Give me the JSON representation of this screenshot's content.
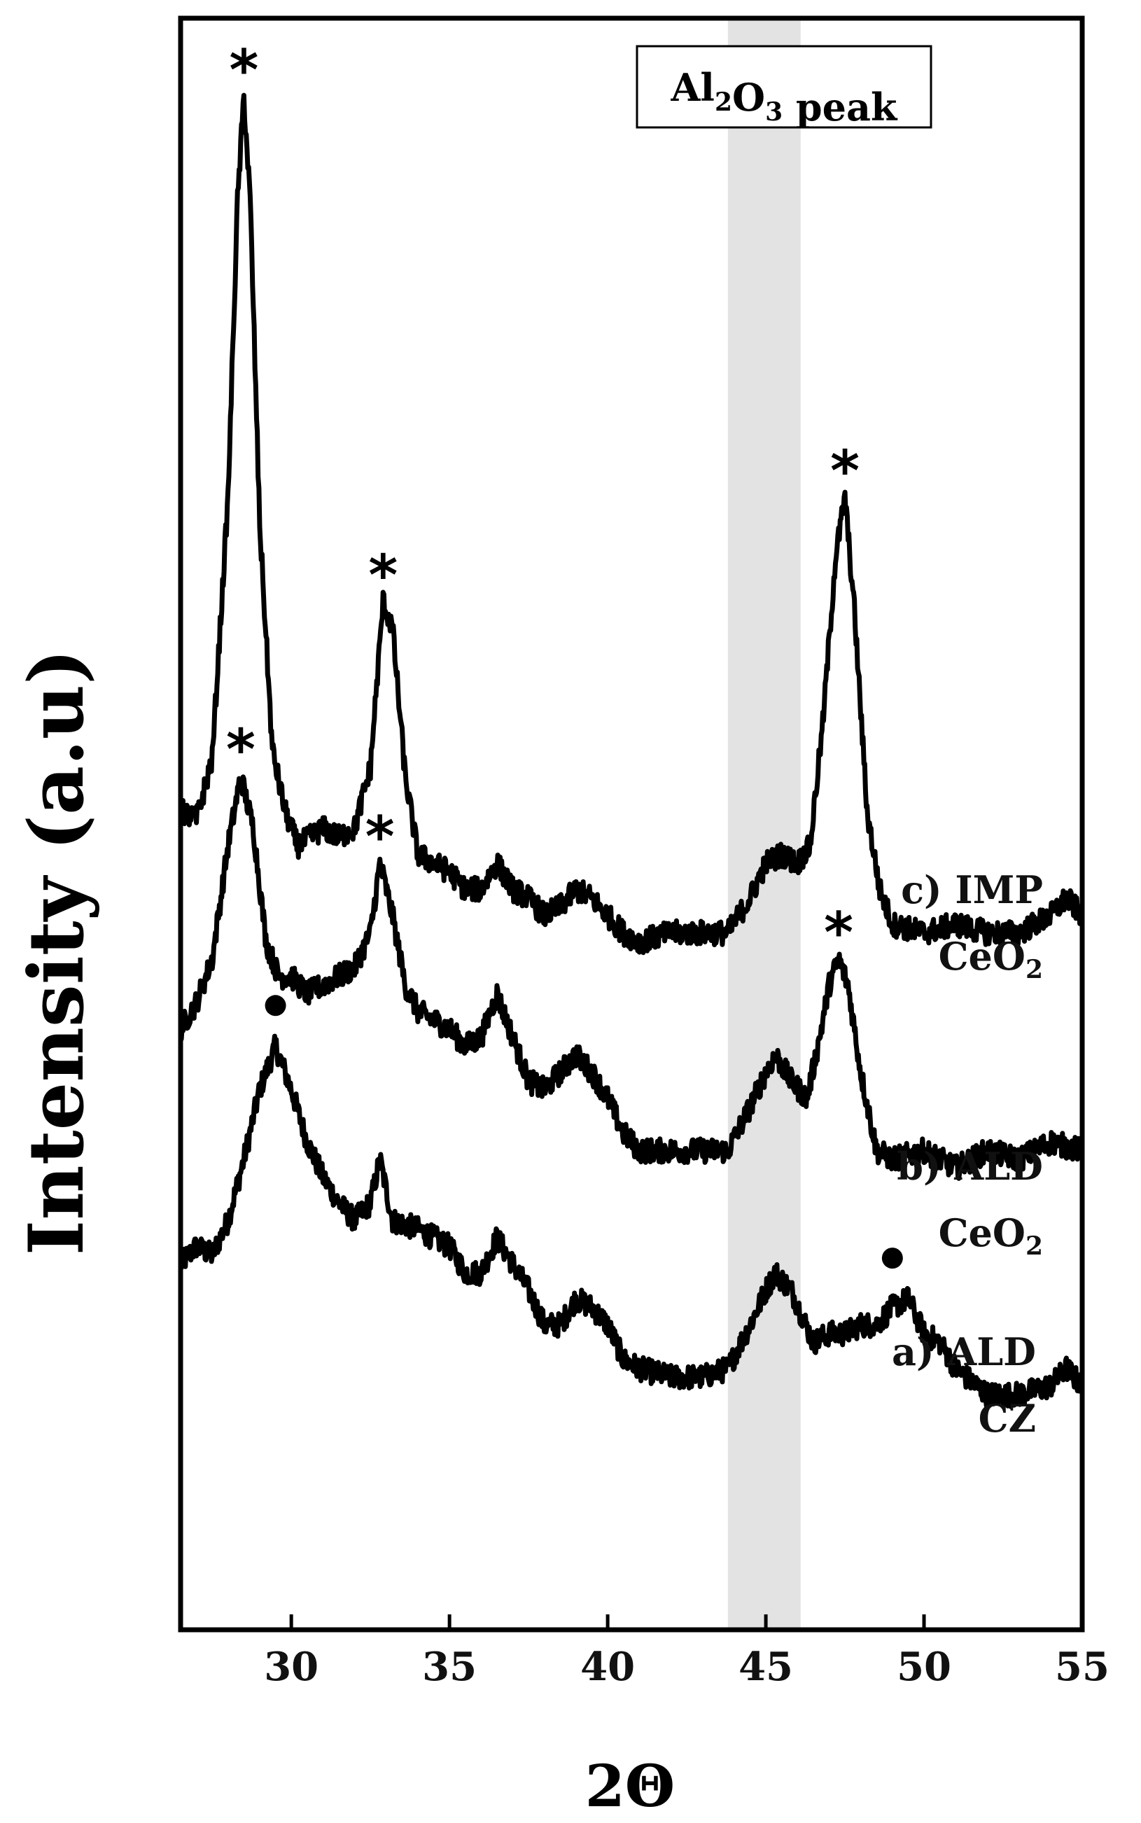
{
  "chart_data": {
    "type": "line",
    "title": "",
    "xlabel": "2Θ",
    "ylabel": "Intensity (a.u)",
    "xlim": [
      26.5,
      55
    ],
    "x_ticks": [
      30,
      35,
      40,
      45,
      50,
      55
    ],
    "grid": false,
    "highlight_band": {
      "x_range": [
        43.8,
        46.1
      ],
      "label_main": "Al",
      "label_sub1": "2",
      "label_mid": "O",
      "label_sub2": "3",
      "label_tail": " peak",
      "color": "#e3e3e3"
    },
    "series": [
      {
        "id": "a",
        "label_line1": "a) ALD",
        "label_line2": "CZ",
        "label_sub": "",
        "color": "#000000",
        "baseline_y": 0.16,
        "points": [
          [
            26.5,
            0.2
          ],
          [
            27.0,
            0.22
          ],
          [
            27.5,
            0.21
          ],
          [
            28.0,
            0.25
          ],
          [
            28.5,
            0.32
          ],
          [
            29.0,
            0.4
          ],
          [
            29.5,
            0.45
          ],
          [
            30.0,
            0.4
          ],
          [
            30.5,
            0.34
          ],
          [
            31.0,
            0.3
          ],
          [
            31.5,
            0.27
          ],
          [
            32.0,
            0.25
          ],
          [
            32.5,
            0.27
          ],
          [
            32.8,
            0.32
          ],
          [
            33.2,
            0.25
          ],
          [
            34.0,
            0.24
          ],
          [
            35.0,
            0.22
          ],
          [
            35.5,
            0.19
          ],
          [
            36.0,
            0.19
          ],
          [
            36.5,
            0.23
          ],
          [
            37.0,
            0.2
          ],
          [
            37.5,
            0.17
          ],
          [
            38.0,
            0.13
          ],
          [
            38.5,
            0.13
          ],
          [
            39.0,
            0.16
          ],
          [
            39.5,
            0.15
          ],
          [
            40.0,
            0.13
          ],
          [
            40.5,
            0.09
          ],
          [
            41.0,
            0.08
          ],
          [
            42.0,
            0.07
          ],
          [
            43.0,
            0.07
          ],
          [
            43.8,
            0.08
          ],
          [
            44.5,
            0.13
          ],
          [
            45.0,
            0.17
          ],
          [
            45.3,
            0.19
          ],
          [
            45.8,
            0.17
          ],
          [
            46.5,
            0.11
          ],
          [
            47.0,
            0.12
          ],
          [
            47.5,
            0.12
          ],
          [
            48.0,
            0.13
          ],
          [
            48.5,
            0.13
          ],
          [
            49.0,
            0.15
          ],
          [
            49.5,
            0.16
          ],
          [
            50.0,
            0.12
          ],
          [
            50.5,
            0.11
          ],
          [
            51.0,
            0.08
          ],
          [
            52.0,
            0.05
          ],
          [
            53.0,
            0.05
          ],
          [
            54.0,
            0.06
          ],
          [
            54.5,
            0.08
          ],
          [
            55.0,
            0.06
          ]
        ]
      },
      {
        "id": "b",
        "label_line1": "b) ALD",
        "label_line2": "CeO",
        "label_sub": "2",
        "color": "#000000",
        "baseline_y": 0.46,
        "points": [
          [
            26.5,
            0.47
          ],
          [
            27.0,
            0.5
          ],
          [
            27.5,
            0.55
          ],
          [
            28.0,
            0.68
          ],
          [
            28.4,
            0.76
          ],
          [
            28.8,
            0.7
          ],
          [
            29.2,
            0.57
          ],
          [
            29.6,
            0.53
          ],
          [
            30.0,
            0.53
          ],
          [
            30.5,
            0.51
          ],
          [
            31.0,
            0.52
          ],
          [
            31.5,
            0.53
          ],
          [
            32.0,
            0.54
          ],
          [
            32.5,
            0.58
          ],
          [
            32.8,
            0.66
          ],
          [
            33.2,
            0.6
          ],
          [
            33.6,
            0.52
          ],
          [
            34.0,
            0.49
          ],
          [
            35.0,
            0.47
          ],
          [
            35.5,
            0.45
          ],
          [
            36.0,
            0.46
          ],
          [
            36.5,
            0.51
          ],
          [
            37.0,
            0.46
          ],
          [
            37.5,
            0.41
          ],
          [
            38.0,
            0.4
          ],
          [
            38.5,
            0.42
          ],
          [
            39.0,
            0.44
          ],
          [
            39.5,
            0.42
          ],
          [
            40.0,
            0.39
          ],
          [
            40.5,
            0.35
          ],
          [
            41.0,
            0.33
          ],
          [
            42.0,
            0.33
          ],
          [
            43.0,
            0.33
          ],
          [
            43.8,
            0.33
          ],
          [
            44.5,
            0.38
          ],
          [
            45.0,
            0.42
          ],
          [
            45.3,
            0.44
          ],
          [
            45.8,
            0.41
          ],
          [
            46.3,
            0.39
          ],
          [
            46.7,
            0.46
          ],
          [
            47.0,
            0.52
          ],
          [
            47.3,
            0.55
          ],
          [
            47.6,
            0.52
          ],
          [
            48.0,
            0.42
          ],
          [
            48.5,
            0.33
          ],
          [
            49.0,
            0.32
          ],
          [
            50.0,
            0.33
          ],
          [
            51.0,
            0.31
          ],
          [
            52.0,
            0.33
          ],
          [
            53.0,
            0.32
          ],
          [
            54.0,
            0.34
          ],
          [
            55.0,
            0.33
          ]
        ]
      },
      {
        "id": "c",
        "label_line1": "c) IMP",
        "label_line2": "CeO",
        "label_sub": "2",
        "color": "#000000",
        "baseline_y": 0.73,
        "points": [
          [
            26.5,
            0.72
          ],
          [
            27.0,
            0.71
          ],
          [
            27.5,
            0.78
          ],
          [
            28.0,
            1.08
          ],
          [
            28.3,
            1.42
          ],
          [
            28.5,
            1.54
          ],
          [
            28.7,
            1.42
          ],
          [
            29.0,
            1.05
          ],
          [
            29.4,
            0.79
          ],
          [
            29.8,
            0.72
          ],
          [
            30.2,
            0.68
          ],
          [
            30.6,
            0.69
          ],
          [
            31.0,
            0.7
          ],
          [
            31.5,
            0.69
          ],
          [
            32.0,
            0.7
          ],
          [
            32.5,
            0.77
          ],
          [
            32.9,
            0.96
          ],
          [
            33.2,
            0.93
          ],
          [
            33.6,
            0.76
          ],
          [
            34.0,
            0.67
          ],
          [
            34.5,
            0.66
          ],
          [
            35.0,
            0.65
          ],
          [
            35.5,
            0.63
          ],
          [
            36.0,
            0.63
          ],
          [
            36.5,
            0.66
          ],
          [
            37.0,
            0.63
          ],
          [
            37.5,
            0.62
          ],
          [
            38.0,
            0.6
          ],
          [
            38.5,
            0.61
          ],
          [
            39.0,
            0.63
          ],
          [
            39.5,
            0.62
          ],
          [
            40.0,
            0.6
          ],
          [
            40.5,
            0.58
          ],
          [
            41.0,
            0.57
          ],
          [
            42.0,
            0.58
          ],
          [
            43.0,
            0.58
          ],
          [
            43.8,
            0.58
          ],
          [
            44.5,
            0.62
          ],
          [
            45.0,
            0.66
          ],
          [
            45.5,
            0.67
          ],
          [
            46.0,
            0.66
          ],
          [
            46.4,
            0.68
          ],
          [
            46.8,
            0.82
          ],
          [
            47.2,
            1.01
          ],
          [
            47.5,
            1.08
          ],
          [
            47.8,
            0.95
          ],
          [
            48.2,
            0.72
          ],
          [
            48.6,
            0.63
          ],
          [
            49.0,
            0.59
          ],
          [
            50.0,
            0.58
          ],
          [
            51.0,
            0.59
          ],
          [
            52.0,
            0.58
          ],
          [
            53.0,
            0.58
          ],
          [
            54.0,
            0.6
          ],
          [
            54.5,
            0.62
          ],
          [
            55.0,
            0.6
          ]
        ]
      }
    ],
    "markers": [
      {
        "symbol": "*",
        "x": 28.5,
        "y": 1.54
      },
      {
        "symbol": "*",
        "x": 32.9,
        "y": 0.96
      },
      {
        "symbol": "*",
        "x": 47.5,
        "y": 1.08
      },
      {
        "symbol": "*",
        "x": 28.4,
        "y": 0.76
      },
      {
        "symbol": "*",
        "x": 32.8,
        "y": 0.66
      },
      {
        "symbol": "*",
        "x": 47.3,
        "y": 0.55
      },
      {
        "symbol": "●",
        "x": 29.5,
        "y": 0.45
      },
      {
        "symbol": "●",
        "x": 49.0,
        "y": 0.16
      }
    ],
    "ylim": [
      -0.22,
      1.63
    ]
  }
}
